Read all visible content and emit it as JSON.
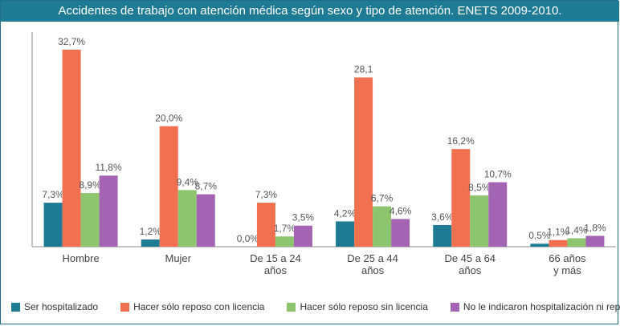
{
  "chart_data": {
    "type": "bar",
    "title": "Accidentes de trabajo con atención médica según sexo y tipo de atención. ENETS 2009-2010.",
    "categories": [
      [
        "Hombre"
      ],
      [
        "Mujer"
      ],
      [
        "De 15 a 24",
        "años"
      ],
      [
        "De 25 a 44",
        "años"
      ],
      [
        "De 45 a 64",
        "años"
      ],
      [
        "66 años",
        "y más"
      ]
    ],
    "series": [
      {
        "name": "Ser hospitalizado",
        "color": "#1f7a93",
        "values": [
          7.3,
          1.2,
          0.0,
          4.2,
          3.6,
          0.5
        ],
        "labels": [
          "7,3%",
          "1,2%",
          "0,0%",
          "4,2%",
          "3,6%",
          "0,5%"
        ]
      },
      {
        "name": "Hacer sólo reposo con licencia",
        "color": "#f07050",
        "values": [
          32.7,
          20.0,
          7.3,
          28.1,
          16.2,
          1.1
        ],
        "labels": [
          "32,7%",
          "20,0%",
          "7,3%",
          "28,1",
          "16,2%",
          "1,1%"
        ]
      },
      {
        "name": "Hacer sólo reposo sin licencia",
        "color": "#8cc56e",
        "values": [
          8.9,
          9.4,
          1.7,
          6.7,
          8.5,
          1.4
        ],
        "labels": [
          "8,9%",
          "9,4%",
          "1,7%",
          "6,7%",
          "8,5%",
          "1,4%"
        ]
      },
      {
        "name": "No le indicaron hospitalización ni reposo",
        "color": "#a464b4",
        "values": [
          11.8,
          8.7,
          3.5,
          4.6,
          10.7,
          1.8
        ],
        "labels": [
          "11,8%",
          "8,7%",
          "3,5%",
          "4,6%",
          "10,7%",
          "1,8%"
        ]
      }
    ],
    "ylim": [
      0,
      35
    ],
    "grid": false,
    "legend_position": "bottom"
  }
}
